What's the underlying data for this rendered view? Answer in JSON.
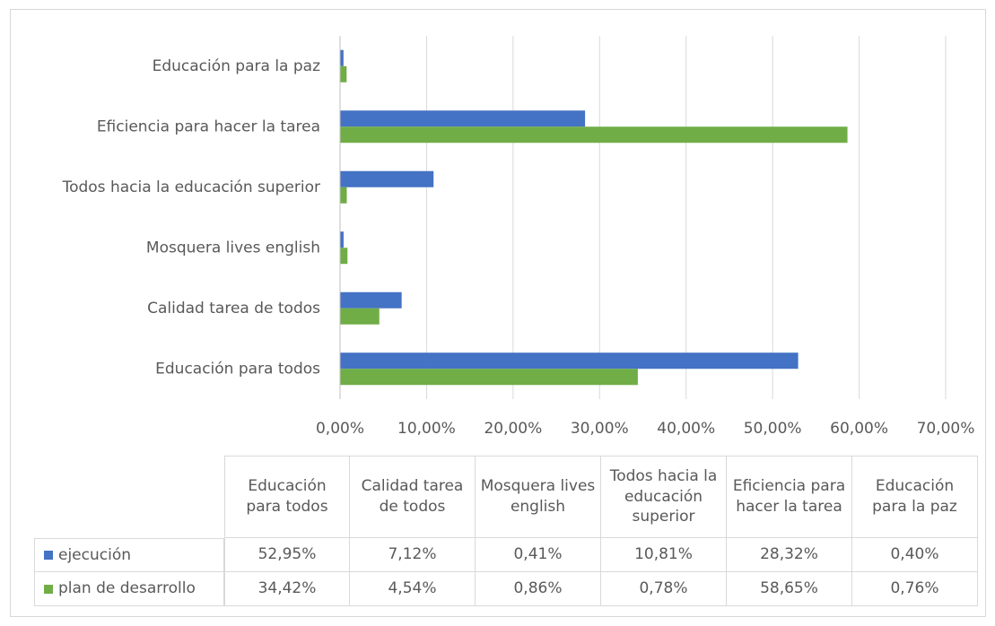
{
  "chart_data": {
    "type": "bar",
    "orientation": "horizontal",
    "categories": [
      "Educación para todos",
      "Calidad tarea de todos",
      "Mosquera lives english",
      "Todos hacia la educación superior",
      "Eficiencia para hacer la tarea",
      "Educación para la paz"
    ],
    "series": [
      {
        "name": "ejecución",
        "color": "#4472c4",
        "values": [
          52.95,
          7.12,
          0.41,
          10.81,
          28.32,
          0.4
        ],
        "value_labels": [
          "52,95%",
          "7,12%",
          "0,41%",
          "10,81%",
          "28,32%",
          "0,40%"
        ]
      },
      {
        "name": "plan de desarrollo",
        "color": "#70ad47",
        "values": [
          34.42,
          4.54,
          0.86,
          0.78,
          58.65,
          0.76
        ],
        "value_labels": [
          "34,42%",
          "4,54%",
          "0,86%",
          "0,78%",
          "58,65%",
          "0,76%"
        ]
      }
    ],
    "xlim": [
      0,
      70
    ],
    "xticks": [
      {
        "value": 0,
        "label": "0,00%"
      },
      {
        "value": 10,
        "label": "10,00%"
      },
      {
        "value": 20,
        "label": "20,00%"
      },
      {
        "value": 30,
        "label": "30,00%"
      },
      {
        "value": 40,
        "label": "40,00%"
      },
      {
        "value": 50,
        "label": "50,00%"
      },
      {
        "value": 60,
        "label": "60,00%"
      },
      {
        "value": 70,
        "label": "70,00%"
      }
    ],
    "grid": true,
    "data_table": true
  }
}
